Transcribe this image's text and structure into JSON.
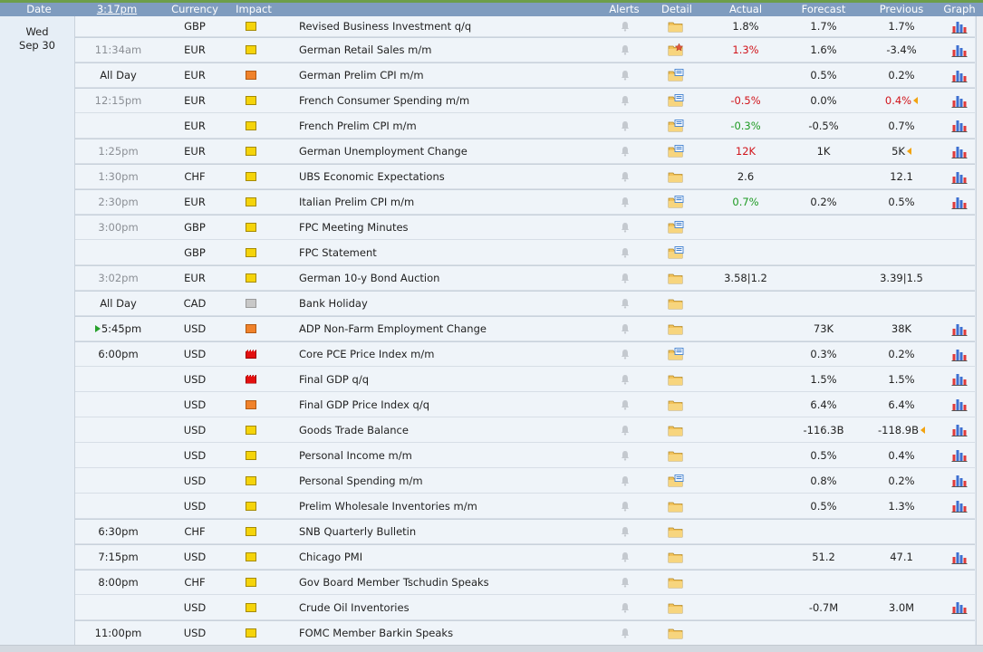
{
  "columns": {
    "date": "Date",
    "time": "3:17pm",
    "currency": "Currency",
    "impact": "Impact",
    "alerts": "Alerts",
    "detail": "Detail",
    "actual": "Actual",
    "forecast": "Forecast",
    "previous": "Previous",
    "graph": "Graph"
  },
  "date_label": {
    "weekday": "Wed",
    "date": "Sep 30"
  },
  "colors": {
    "impact_low": "#f5d40a",
    "impact_medium": "#f0822b",
    "impact_high": "#e30f0f",
    "impact_holiday": "#c8c8c8",
    "better": "#1e9a23",
    "worse": "#d1141b"
  },
  "events": [
    {
      "time": "",
      "currency": "GBP",
      "impact": "low",
      "title": "Revised Business Investment q/q",
      "detail_icon": "folder-icon",
      "actual": "1.8%",
      "forecast": "1.7%",
      "previous": "1.7%",
      "graph": true
    },
    {
      "time": "11:34am",
      "currency": "EUR",
      "impact": "low",
      "title": "German Retail Sales m/m",
      "detail_icon": "folder-star-icon",
      "actual": "1.3%",
      "actual_color": "red",
      "forecast": "1.6%",
      "previous": "-3.4%",
      "graph": true
    },
    {
      "time": "All Day",
      "time_dark": true,
      "currency": "EUR",
      "impact": "medium",
      "title": "German Prelim CPI m/m",
      "detail_icon": "folder-news-icon",
      "actual": "",
      "forecast": "0.5%",
      "previous": "0.2%",
      "graph": true
    },
    {
      "time": "12:15pm",
      "currency": "EUR",
      "impact": "low",
      "title": "French Consumer Spending m/m",
      "detail_icon": "folder-news-icon",
      "actual": "-0.5%",
      "actual_color": "red",
      "forecast": "0.0%",
      "previous": "0.4%",
      "previous_color": "red",
      "revised": true,
      "graph": true
    },
    {
      "time": "",
      "currency": "EUR",
      "impact": "low",
      "title": "French Prelim CPI m/m",
      "detail_icon": "folder-news-icon",
      "actual": "-0.3%",
      "actual_color": "green",
      "forecast": "-0.5%",
      "previous": "0.7%",
      "graph": true
    },
    {
      "time": "1:25pm",
      "currency": "EUR",
      "impact": "low",
      "title": "German Unemployment Change",
      "detail_icon": "folder-news-icon",
      "actual": "12K",
      "actual_color": "red",
      "forecast": "1K",
      "previous": "5K",
      "revised": true,
      "graph": true
    },
    {
      "time": "1:30pm",
      "currency": "CHF",
      "impact": "low",
      "title": "UBS Economic Expectations",
      "detail_icon": "folder-icon",
      "actual": "2.6",
      "forecast": "",
      "previous": "12.1",
      "graph": true
    },
    {
      "time": "2:30pm",
      "currency": "EUR",
      "impact": "low",
      "title": "Italian Prelim CPI m/m",
      "detail_icon": "folder-news-icon",
      "actual": "0.7%",
      "actual_color": "green",
      "forecast": "0.2%",
      "previous": "0.5%",
      "graph": true
    },
    {
      "time": "3:00pm",
      "currency": "GBP",
      "impact": "low",
      "title": "FPC Meeting Minutes",
      "detail_icon": "folder-news-icon",
      "actual": "",
      "forecast": "",
      "previous": "",
      "graph": false
    },
    {
      "time": "",
      "currency": "GBP",
      "impact": "low",
      "title": "FPC Statement",
      "detail_icon": "folder-news-icon",
      "actual": "",
      "forecast": "",
      "previous": "",
      "graph": false
    },
    {
      "time": "3:02pm",
      "currency": "EUR",
      "impact": "low",
      "title": "German 10-y Bond Auction",
      "detail_icon": "folder-icon",
      "actual": "3.58|1.2",
      "forecast": "",
      "previous": "3.39|1.5",
      "graph": false
    },
    {
      "time": "All Day",
      "time_dark": true,
      "currency": "CAD",
      "impact": "holiday",
      "title": "Bank Holiday",
      "detail_icon": "folder-icon",
      "actual": "",
      "forecast": "",
      "previous": "",
      "graph": false
    },
    {
      "time": "5:45pm",
      "time_dark": true,
      "upnext": true,
      "currency": "USD",
      "impact": "medium",
      "title": "ADP Non-Farm Employment Change",
      "detail_icon": "folder-icon",
      "actual": "",
      "forecast": "73K",
      "previous": "38K",
      "graph": true
    },
    {
      "time": "6:00pm",
      "time_dark": true,
      "currency": "USD",
      "impact": "high",
      "title": "Core PCE Price Index m/m",
      "detail_icon": "folder-news-icon",
      "actual": "",
      "forecast": "0.3%",
      "previous": "0.2%",
      "graph": true
    },
    {
      "time": "",
      "currency": "USD",
      "impact": "high",
      "title": "Final GDP q/q",
      "detail_icon": "folder-icon",
      "actual": "",
      "forecast": "1.5%",
      "previous": "1.5%",
      "graph": true
    },
    {
      "time": "",
      "currency": "USD",
      "impact": "medium",
      "title": "Final GDP Price Index q/q",
      "detail_icon": "folder-icon",
      "actual": "",
      "forecast": "6.4%",
      "previous": "6.4%",
      "graph": true
    },
    {
      "time": "",
      "currency": "USD",
      "impact": "low",
      "title": "Goods Trade Balance",
      "detail_icon": "folder-icon",
      "actual": "",
      "forecast": "-116.3B",
      "previous": "-118.9B",
      "revised": true,
      "graph": true
    },
    {
      "time": "",
      "currency": "USD",
      "impact": "low",
      "title": "Personal Income m/m",
      "detail_icon": "folder-icon",
      "actual": "",
      "forecast": "0.5%",
      "previous": "0.4%",
      "graph": true
    },
    {
      "time": "",
      "currency": "USD",
      "impact": "low",
      "title": "Personal Spending m/m",
      "detail_icon": "folder-news-icon",
      "actual": "",
      "forecast": "0.8%",
      "previous": "0.2%",
      "graph": true
    },
    {
      "time": "",
      "currency": "USD",
      "impact": "low",
      "title": "Prelim Wholesale Inventories m/m",
      "detail_icon": "folder-icon",
      "actual": "",
      "forecast": "0.5%",
      "previous": "1.3%",
      "graph": true
    },
    {
      "time": "6:30pm",
      "time_dark": true,
      "currency": "CHF",
      "impact": "low",
      "title": "SNB Quarterly Bulletin",
      "detail_icon": "folder-icon",
      "actual": "",
      "forecast": "",
      "previous": "",
      "graph": false
    },
    {
      "time": "7:15pm",
      "time_dark": true,
      "currency": "USD",
      "impact": "low",
      "title": "Chicago PMI",
      "detail_icon": "folder-icon",
      "actual": "",
      "forecast": "51.2",
      "previous": "47.1",
      "graph": true
    },
    {
      "time": "8:00pm",
      "time_dark": true,
      "currency": "CHF",
      "impact": "low",
      "title": "Gov Board Member Tschudin Speaks",
      "detail_icon": "folder-icon",
      "actual": "",
      "forecast": "",
      "previous": "",
      "graph": false
    },
    {
      "time": "",
      "currency": "USD",
      "impact": "low",
      "title": "Crude Oil Inventories",
      "detail_icon": "folder-icon",
      "actual": "",
      "forecast": "-0.7M",
      "previous": "3.0M",
      "graph": true
    },
    {
      "time": "11:00pm",
      "time_dark": true,
      "currency": "USD",
      "impact": "low",
      "title": "FOMC Member Barkin Speaks",
      "detail_icon": "folder-icon",
      "actual": "",
      "forecast": "",
      "previous": "",
      "graph": false
    }
  ]
}
